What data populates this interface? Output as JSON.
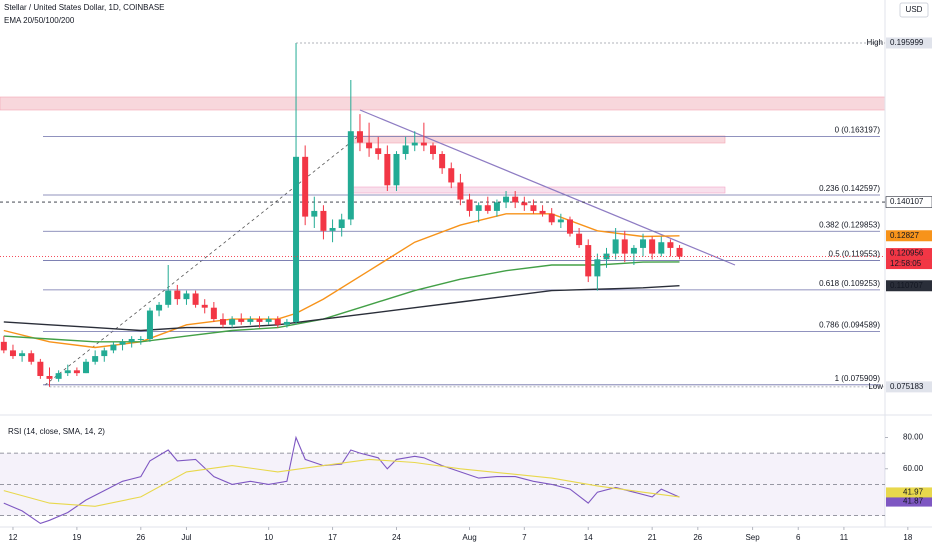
{
  "chart_data": {
    "type": "candlestick",
    "title": "Stellar / United States Dollar, 1D, COINBASE",
    "indicator_label": "EMA 20/50/100/200",
    "currency": "USD",
    "countdown": "12:58:05",
    "xlim": [
      -0.42,
      96.5
    ],
    "xticks": [
      {
        "value": 1,
        "label": "12"
      },
      {
        "value": 8,
        "label": "19"
      },
      {
        "value": 15,
        "label": "26"
      },
      {
        "value": 20,
        "label": "Jul"
      },
      {
        "value": 29,
        "label": "10"
      },
      {
        "value": 36,
        "label": "17"
      },
      {
        "value": 43,
        "label": "24"
      },
      {
        "value": 51,
        "label": "Aug"
      },
      {
        "value": 57,
        "label": "7"
      },
      {
        "value": 64,
        "label": "14"
      },
      {
        "value": 71,
        "label": "21"
      },
      {
        "value": 76,
        "label": "26"
      },
      {
        "value": 82,
        "label": "Sep"
      },
      {
        "value": 87,
        "label": "6"
      },
      {
        "value": 92,
        "label": "11"
      },
      {
        "value": 99,
        "label": "18"
      }
    ],
    "ylim": [
      0.066,
      0.2111
    ],
    "up_color": "#22ab94",
    "down_color": "#f23645",
    "open": [
      0.091,
      0.088,
      0.086,
      0.087,
      0.084,
      0.079,
      0.078,
      0.08,
      0.081,
      0.08,
      0.084,
      0.086,
      0.088,
      0.09,
      0.091,
      0.092,
      0.092,
      0.102,
      0.104,
      0.109,
      0.106,
      0.108,
      0.104,
      0.103,
      0.099,
      0.097,
      0.099,
      0.098,
      0.099,
      0.098,
      0.099,
      0.097,
      0.098,
      0.156,
      0.135,
      0.137,
      0.13,
      0.131,
      0.134,
      0.165,
      0.161,
      0.159,
      0.157,
      0.146,
      0.157,
      0.16,
      0.161,
      0.16,
      0.157,
      0.152,
      0.147,
      0.141,
      0.137,
      0.139,
      0.137,
      0.14,
      0.142,
      0.14,
      0.139,
      0.137,
      0.136,
      0.133,
      0.134,
      0.129,
      0.125,
      0.114,
      0.12,
      0.122,
      0.127,
      0.122,
      0.124,
      0.127,
      0.122,
      0.126,
      0.124
    ],
    "high": [
      0.093,
      0.09,
      0.088,
      0.088,
      0.085,
      0.082,
      0.081,
      0.083,
      0.082,
      0.085,
      0.088,
      0.089,
      0.091,
      0.092,
      0.093,
      0.093,
      0.103,
      0.105,
      0.118,
      0.111,
      0.109,
      0.109,
      0.106,
      0.105,
      0.101,
      0.1,
      0.101,
      0.1,
      0.1,
      0.1,
      0.1,
      0.099,
      0.195999,
      0.16,
      0.142,
      0.139,
      0.134,
      0.136,
      0.183,
      0.171,
      0.168,
      0.163,
      0.16,
      0.158,
      0.163,
      0.165,
      0.168,
      0.161,
      0.158,
      0.154,
      0.15,
      0.143,
      0.14,
      0.142,
      0.141,
      0.144,
      0.144,
      0.142,
      0.141,
      0.139,
      0.138,
      0.136,
      0.135,
      0.131,
      0.127,
      0.122,
      0.124,
      0.131,
      0.13,
      0.125,
      0.129,
      0.128,
      0.128,
      0.127,
      0.125
    ],
    "low": [
      0.087,
      0.085,
      0.084,
      0.083,
      0.078,
      0.075183,
      0.077,
      0.079,
      0.079,
      0.08,
      0.083,
      0.084,
      0.087,
      0.088,
      0.089,
      0.09,
      0.091,
      0.1,
      0.103,
      0.104,
      0.104,
      0.103,
      0.101,
      0.098,
      0.096,
      0.096,
      0.097,
      0.097,
      0.096,
      0.097,
      0.096,
      0.096,
      0.097,
      0.132,
      0.131,
      0.127,
      0.126,
      0.128,
      0.132,
      0.158,
      0.156,
      0.155,
      0.144,
      0.144,
      0.155,
      0.158,
      0.158,
      0.155,
      0.15,
      0.145,
      0.139,
      0.135,
      0.133,
      0.136,
      0.135,
      0.138,
      0.138,
      0.137,
      0.136,
      0.135,
      0.132,
      0.131,
      0.128,
      0.124,
      0.112,
      0.109,
      0.117,
      0.12,
      0.119,
      0.118,
      0.121,
      0.12,
      0.121,
      0.121,
      0.12
    ],
    "close": [
      0.088,
      0.086,
      0.087,
      0.084,
      0.079,
      0.078,
      0.08,
      0.081,
      0.08,
      0.084,
      0.086,
      0.088,
      0.09,
      0.091,
      0.092,
      0.092,
      0.102,
      0.104,
      0.109,
      0.106,
      0.108,
      0.104,
      0.103,
      0.099,
      0.097,
      0.099,
      0.098,
      0.099,
      0.098,
      0.099,
      0.097,
      0.098,
      0.156,
      0.135,
      0.137,
      0.13,
      0.131,
      0.134,
      0.165,
      0.161,
      0.159,
      0.157,
      0.146,
      0.157,
      0.16,
      0.161,
      0.16,
      0.157,
      0.152,
      0.147,
      0.141,
      0.137,
      0.139,
      0.137,
      0.14,
      0.142,
      0.14,
      0.139,
      0.137,
      0.136,
      0.133,
      0.134,
      0.129,
      0.125,
      0.114,
      0.12,
      0.122,
      0.127,
      0.122,
      0.124,
      0.127,
      0.122,
      0.126,
      0.124,
      0.120956
    ],
    "ema": [
      {
        "color": "#f7931a",
        "x": [
          0,
          5,
          10,
          15,
          20,
          25,
          30,
          32,
          35,
          40,
          45,
          50,
          55,
          60,
          65,
          70,
          74
        ],
        "values": [
          0.095,
          0.091,
          0.089,
          0.091,
          0.097,
          0.099,
          0.099,
          0.101,
          0.106,
          0.116,
          0.126,
          0.132,
          0.136,
          0.136,
          0.13,
          0.128,
          0.12827
        ]
      },
      {
        "color": "#43a047",
        "x": [
          0,
          5,
          10,
          15,
          20,
          25,
          30,
          35,
          40,
          45,
          50,
          55,
          60,
          65,
          70,
          74
        ],
        "values": [
          0.093,
          0.092,
          0.091,
          0.091,
          0.093,
          0.095,
          0.096,
          0.099,
          0.104,
          0.109,
          0.113,
          0.116,
          0.118,
          0.118,
          0.119,
          0.119096
        ]
      },
      {
        "color": "#2a2e39",
        "x": [
          0,
          5,
          10,
          15,
          20,
          25,
          30,
          35,
          40,
          45,
          50,
          55,
          60,
          65,
          70,
          74
        ],
        "values": [
          0.098,
          0.097,
          0.096,
          0.095,
          0.096,
          0.096,
          0.097,
          0.099,
          0.101,
          0.103,
          0.105,
          0.107,
          0.109,
          0.1095,
          0.11,
          0.110707
        ]
      }
    ],
    "high_label": "High",
    "low_label": "Low",
    "hline": {
      "value": 0.140107,
      "color": "#2a2e39"
    },
    "fib_color": "#6c6fa8",
    "fib_levels": [
      {
        "value": 0.163197,
        "label": "0 (0.163197)"
      },
      {
        "value": 0.142597,
        "label": "0.236 (0.142597)"
      },
      {
        "value": 0.129853,
        "label": "0.382 (0.129853)"
      },
      {
        "value": 0.119553,
        "label": "0.5 (0.119553)"
      },
      {
        "value": 0.109253,
        "label": "0.618 (0.109253)"
      },
      {
        "value": 0.094589,
        "label": "0.786 (0.094589)"
      },
      {
        "value": 0.075909,
        "label": "1 (0.075909)"
      }
    ],
    "rsi": {
      "title": "RSI (14, close, SMA, 14, 2)",
      "ylim": [
        24,
        88
      ],
      "yticks": [
        {
          "value": 80,
          "label": "80.00"
        },
        {
          "value": 60,
          "label": "60.00"
        }
      ],
      "bands": [
        30,
        70
      ],
      "mid": 50,
      "series": [
        {
          "color": "#7e57c2",
          "x": [
            0,
            2,
            4,
            5,
            7,
            9,
            11,
            13,
            15,
            16,
            18,
            19,
            21,
            23,
            25,
            27,
            29,
            31,
            32,
            33,
            35,
            37,
            38,
            39,
            41,
            42,
            43,
            45,
            46,
            48,
            50,
            52,
            54,
            56,
            58,
            60,
            62,
            64,
            65,
            67,
            69,
            71,
            72,
            74
          ],
          "values": [
            38,
            33,
            25,
            27,
            32,
            40,
            46,
            52,
            55,
            65,
            72,
            65,
            66,
            55,
            50,
            52,
            50,
            52,
            80,
            66,
            62,
            63,
            72,
            70,
            67,
            60,
            66,
            68,
            67,
            62,
            58,
            54,
            55,
            55,
            52,
            50,
            47,
            38,
            45,
            48,
            45,
            42,
            47,
            41.87
          ]
        },
        {
          "color": "#e8d84c",
          "x": [
            0,
            5,
            10,
            15,
            20,
            25,
            30,
            35,
            40,
            45,
            50,
            55,
            60,
            65,
            70,
            74
          ],
          "values": [
            46,
            38,
            36,
            42,
            58,
            62,
            58,
            62,
            66,
            64,
            60,
            57,
            54,
            49,
            45,
            41.97
          ]
        }
      ]
    }
  }
}
